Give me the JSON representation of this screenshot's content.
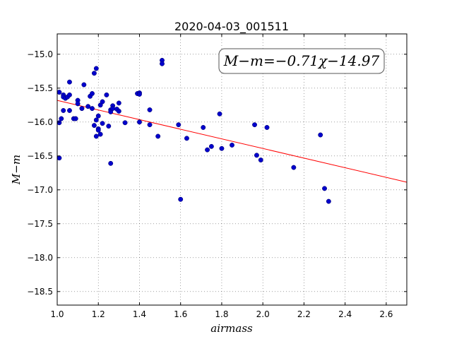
{
  "chart_data": {
    "type": "scatter",
    "title": "2020-04-03_001511",
    "xlabel": "airmass",
    "ylabel": "M−m",
    "xlim": [
      1.0,
      2.7
    ],
    "ylim": [
      -18.7,
      -14.7
    ],
    "y_inverted": true,
    "grid": true,
    "xticks": [
      1.0,
      1.2,
      1.4,
      1.6,
      1.8,
      2.0,
      2.2,
      2.4,
      2.6
    ],
    "xtick_labels": [
      "1.0",
      "1.2",
      "1.4",
      "1.6",
      "1.8",
      "2.0",
      "2.2",
      "2.4",
      "2.6"
    ],
    "yticks": [
      -15.0,
      -15.5,
      -16.0,
      -16.5,
      -17.0,
      -17.5,
      -18.0,
      -18.5
    ],
    "ytick_labels": [
      "−15.0",
      "−15.5",
      "−16.0",
      "−16.5",
      "−17.0",
      "−17.5",
      "−18.0",
      "−18.5"
    ],
    "annotation": "M−m=−0.71χ−14.97",
    "fit_line": {
      "slope": -0.71,
      "intercept": -14.97,
      "color": "#ff0000"
    },
    "point_color": "#0000cc",
    "points": [
      [
        1.01,
        -15.56
      ],
      [
        1.01,
        -16.01
      ],
      [
        1.01,
        -16.53
      ],
      [
        1.02,
        -15.95
      ],
      [
        1.03,
        -15.6
      ],
      [
        1.03,
        -15.63
      ],
      [
        1.03,
        -15.83
      ],
      [
        1.04,
        -15.65
      ],
      [
        1.05,
        -15.63
      ],
      [
        1.06,
        -15.41
      ],
      [
        1.06,
        -15.6
      ],
      [
        1.06,
        -15.83
      ],
      [
        1.08,
        -15.95
      ],
      [
        1.09,
        -15.95
      ],
      [
        1.1,
        -15.68
      ],
      [
        1.1,
        -15.73
      ],
      [
        1.12,
        -15.8
      ],
      [
        1.13,
        -15.45
      ],
      [
        1.15,
        -15.77
      ],
      [
        1.16,
        -15.62
      ],
      [
        1.17,
        -15.58
      ],
      [
        1.17,
        -15.8
      ],
      [
        1.18,
        -15.28
      ],
      [
        1.18,
        -16.05
      ],
      [
        1.19,
        -15.21
      ],
      [
        1.19,
        -15.97
      ],
      [
        1.19,
        -16.21
      ],
      [
        1.2,
        -15.91
      ],
      [
        1.2,
        -16.1
      ],
      [
        1.2,
        -16.12
      ],
      [
        1.21,
        -15.75
      ],
      [
        1.21,
        -16.18
      ],
      [
        1.22,
        -15.7
      ],
      [
        1.22,
        -16.02
      ],
      [
        1.24,
        -15.6
      ],
      [
        1.25,
        -16.06
      ],
      [
        1.26,
        -15.82
      ],
      [
        1.26,
        -15.85
      ],
      [
        1.26,
        -16.61
      ],
      [
        1.27,
        -15.76
      ],
      [
        1.27,
        -15.8
      ],
      [
        1.29,
        -15.81
      ],
      [
        1.3,
        -15.72
      ],
      [
        1.3,
        -15.84
      ],
      [
        1.33,
        -16.01
      ],
      [
        1.39,
        -15.58
      ],
      [
        1.4,
        -15.57
      ],
      [
        1.4,
        -15.59
      ],
      [
        1.4,
        -16.0
      ],
      [
        1.45,
        -15.82
      ],
      [
        1.45,
        -16.04
      ],
      [
        1.49,
        -16.21
      ],
      [
        1.51,
        -15.09
      ],
      [
        1.51,
        -15.14
      ],
      [
        1.59,
        -16.04
      ],
      [
        1.6,
        -17.14
      ],
      [
        1.63,
        -16.24
      ],
      [
        1.71,
        -16.08
      ],
      [
        1.73,
        -16.41
      ],
      [
        1.75,
        -16.36
      ],
      [
        1.79,
        -15.88
      ],
      [
        1.8,
        -16.39
      ],
      [
        1.85,
        -16.34
      ],
      [
        1.96,
        -16.04
      ],
      [
        1.97,
        -16.49
      ],
      [
        1.99,
        -16.56
      ],
      [
        2.02,
        -16.08
      ],
      [
        2.15,
        -16.67
      ],
      [
        2.28,
        -16.19
      ],
      [
        2.3,
        -16.98
      ],
      [
        2.32,
        -17.17
      ]
    ]
  }
}
